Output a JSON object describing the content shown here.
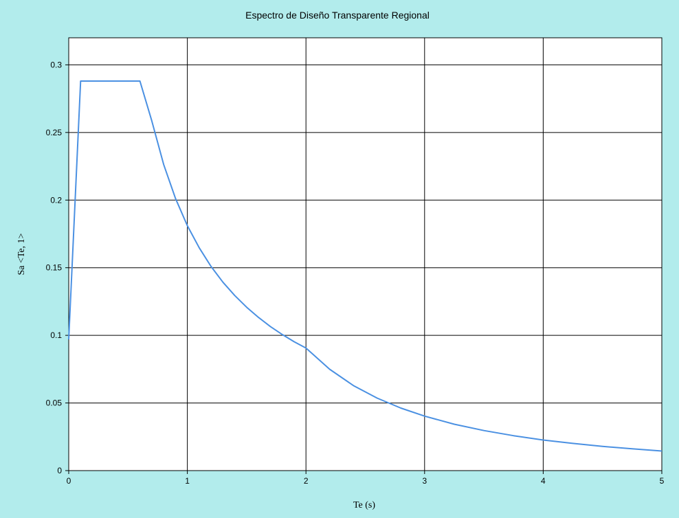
{
  "colors": {
    "background": "#b2ecec",
    "plot_background": "#ffffff",
    "grid": "#000000",
    "series": "#4a90e2"
  },
  "chart_data": {
    "type": "line",
    "title": "Espectro de Diseño Transparente Regional",
    "xlabel": "Te (s)",
    "ylabel": "Sa <Te, 1>",
    "xlim": [
      0,
      5
    ],
    "ylim": [
      0,
      0.32
    ],
    "x_ticks": [
      "0",
      "1",
      "2",
      "3",
      "4",
      "5"
    ],
    "y_ticks": [
      "0",
      "0.05",
      "0.1",
      "0.15",
      "0.2",
      "0.25",
      "0.3"
    ],
    "grid": true,
    "legend": "none",
    "series": [
      {
        "x": [
          0,
          0.1,
          0.6,
          0.7,
          0.8,
          0.9,
          1.0,
          1.1,
          1.2,
          1.3,
          1.4,
          1.5,
          1.6,
          1.7,
          1.8,
          1.9,
          2.0,
          2.2,
          2.4,
          2.6,
          2.8,
          3.0,
          3.25,
          3.5,
          3.75,
          4.0,
          4.25,
          4.5,
          4.75,
          5.0
        ],
        "y": [
          0.097,
          0.288,
          0.288,
          0.2587,
          0.2264,
          0.2013,
          0.1811,
          0.1647,
          0.1509,
          0.1393,
          0.1294,
          0.1208,
          0.1132,
          0.1065,
          0.1006,
          0.0953,
          0.0906,
          0.0749,
          0.0629,
          0.0536,
          0.0462,
          0.0403,
          0.0343,
          0.0296,
          0.0258,
          0.0226,
          0.0201,
          0.0179,
          0.0161,
          0.0145
        ]
      }
    ]
  }
}
